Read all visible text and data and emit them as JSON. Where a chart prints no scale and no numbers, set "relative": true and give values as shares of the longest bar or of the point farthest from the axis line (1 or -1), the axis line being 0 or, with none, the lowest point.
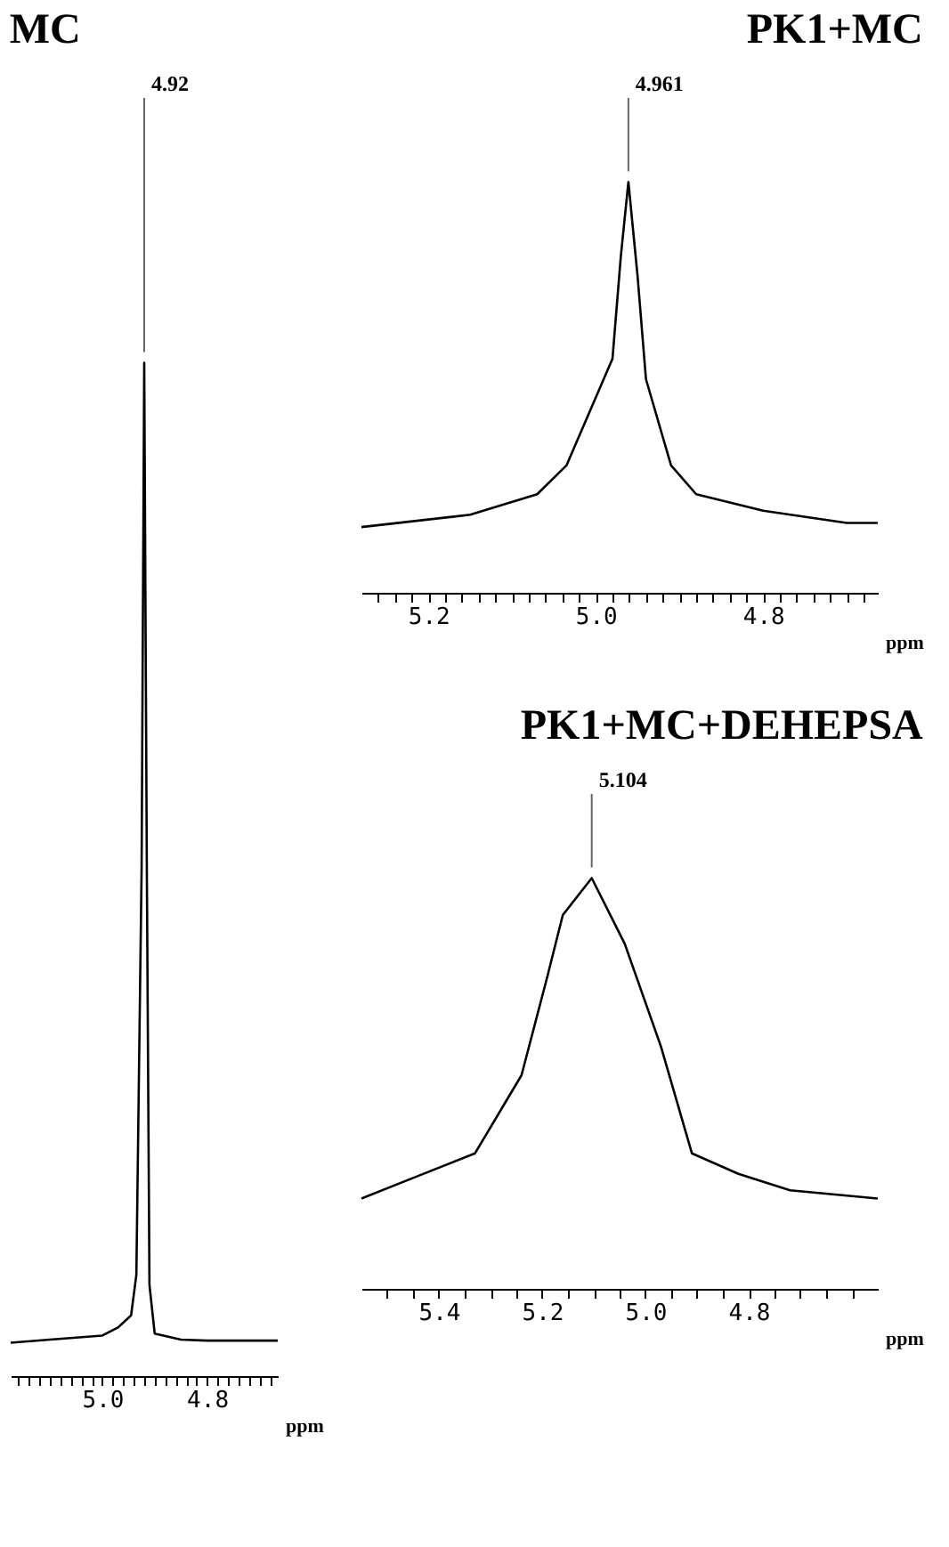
{
  "chart_data": [
    {
      "type": "line",
      "title": "MC",
      "xlabel": "ppm",
      "relative": true,
      "xlim": [
        5.175,
        4.665
      ],
      "xticks": [
        {
          "value": 5.16,
          "label": null
        },
        {
          "value": 5.14,
          "label": null
        },
        {
          "value": 5.12,
          "label": null
        },
        {
          "value": 5.1,
          "label": null
        },
        {
          "value": 5.08,
          "label": null
        },
        {
          "value": 5.06,
          "label": null
        },
        {
          "value": 5.04,
          "label": null
        },
        {
          "value": 5.02,
          "label": null
        },
        {
          "value": 5.0,
          "label": "5.0"
        },
        {
          "value": 4.98,
          "label": null
        },
        {
          "value": 4.96,
          "label": null
        },
        {
          "value": 4.94,
          "label": null
        },
        {
          "value": 4.92,
          "label": null
        },
        {
          "value": 4.9,
          "label": null
        },
        {
          "value": 4.88,
          "label": null
        },
        {
          "value": 4.86,
          "label": null
        },
        {
          "value": 4.84,
          "label": null
        },
        {
          "value": 4.82,
          "label": null
        },
        {
          "value": 4.8,
          "label": "4.8"
        },
        {
          "value": 4.78,
          "label": null
        },
        {
          "value": 4.76,
          "label": null
        },
        {
          "value": 4.74,
          "label": null
        },
        {
          "value": 4.72,
          "label": null
        },
        {
          "value": 4.7,
          "label": null
        },
        {
          "value": 4.68,
          "label": null
        }
      ],
      "x": [
        5.175,
        5.1,
        5.0,
        4.97,
        4.945,
        4.935,
        4.925,
        4.92,
        4.915,
        4.91,
        4.9,
        4.85,
        4.8,
        4.665
      ],
      "series": [
        {
          "color": "#000000",
          "values": [
            0.033,
            0.036,
            0.04,
            0.048,
            0.06,
            0.1,
            0.5,
            1.0,
            0.5,
            0.09,
            0.042,
            0.036,
            0.035,
            0.035
          ]
        }
      ],
      "annotations": [
        {
          "text": "4.92",
          "x": 4.92,
          "y": 1.0
        }
      ]
    },
    {
      "type": "line",
      "title": "PK1+MC",
      "xlabel": "ppm",
      "relative": true,
      "xlim": [
        5.28,
        4.663
      ],
      "xticks": [
        {
          "value": 5.26,
          "label": null
        },
        {
          "value": 5.24,
          "label": null
        },
        {
          "value": 5.22,
          "label": null
        },
        {
          "value": 5.2,
          "label": "5.2"
        },
        {
          "value": 5.18,
          "label": null
        },
        {
          "value": 5.16,
          "label": null
        },
        {
          "value": 5.14,
          "label": null
        },
        {
          "value": 5.12,
          "label": null
        },
        {
          "value": 5.1,
          "label": null
        },
        {
          "value": 5.08,
          "label": null
        },
        {
          "value": 5.06,
          "label": null
        },
        {
          "value": 5.04,
          "label": null
        },
        {
          "value": 5.02,
          "label": null
        },
        {
          "value": 5.0,
          "label": "5.0"
        },
        {
          "value": 4.98,
          "label": null
        },
        {
          "value": 4.96,
          "label": null
        },
        {
          "value": 4.94,
          "label": null
        },
        {
          "value": 4.92,
          "label": null
        },
        {
          "value": 4.9,
          "label": null
        },
        {
          "value": 4.88,
          "label": null
        },
        {
          "value": 4.86,
          "label": null
        },
        {
          "value": 4.84,
          "label": null
        },
        {
          "value": 4.82,
          "label": null
        },
        {
          "value": 4.8,
          "label": "4.8"
        },
        {
          "value": 4.78,
          "label": null
        },
        {
          "value": 4.76,
          "label": null
        },
        {
          "value": 4.74,
          "label": null
        },
        {
          "value": 4.72,
          "label": null
        },
        {
          "value": 4.7,
          "label": null
        },
        {
          "value": 4.68,
          "label": null
        }
      ],
      "x": [
        5.28,
        5.15,
        5.07,
        5.035,
        4.98,
        4.97,
        4.961,
        4.95,
        4.94,
        4.91,
        4.88,
        4.8,
        4.7,
        4.663
      ],
      "series": [
        {
          "color": "#000000",
          "values": [
            0.16,
            0.19,
            0.24,
            0.31,
            0.57,
            0.82,
            1.0,
            0.77,
            0.52,
            0.31,
            0.24,
            0.2,
            0.17,
            0.17
          ]
        }
      ],
      "annotations": [
        {
          "text": "4.961",
          "x": 4.961,
          "y": 1.0
        }
      ]
    },
    {
      "type": "line",
      "title": "PK1+MC+DEHEPSA",
      "xlabel": "ppm",
      "relative": true,
      "xlim": [
        5.55,
        4.55
      ],
      "xticks": [
        {
          "value": 5.5,
          "label": null
        },
        {
          "value": 5.45,
          "label": null
        },
        {
          "value": 5.4,
          "label": "5.4"
        },
        {
          "value": 5.35,
          "label": null
        },
        {
          "value": 5.3,
          "label": null
        },
        {
          "value": 5.25,
          "label": null
        },
        {
          "value": 5.2,
          "label": "5.2"
        },
        {
          "value": 5.15,
          "label": null
        },
        {
          "value": 5.1,
          "label": null
        },
        {
          "value": 5.05,
          "label": null
        },
        {
          "value": 5.0,
          "label": "5.0"
        },
        {
          "value": 4.95,
          "label": null
        },
        {
          "value": 4.9,
          "label": null
        },
        {
          "value": 4.85,
          "label": null
        },
        {
          "value": 4.8,
          "label": "4.8"
        },
        {
          "value": 4.75,
          "label": null
        },
        {
          "value": 4.7,
          "label": null
        },
        {
          "value": 4.65,
          "label": null
        },
        {
          "value": 4.6,
          "label": null
        }
      ],
      "x": [
        5.55,
        5.45,
        5.33,
        5.24,
        5.19,
        5.16,
        5.104,
        5.04,
        4.97,
        4.91,
        4.82,
        4.72,
        4.55
      ],
      "series": [
        {
          "color": "#000000",
          "values": [
            0.22,
            0.27,
            0.33,
            0.52,
            0.76,
            0.91,
            1.0,
            0.84,
            0.59,
            0.33,
            0.28,
            0.24,
            0.22
          ]
        }
      ],
      "annotations": [
        {
          "text": "5.104",
          "x": 5.104,
          "y": 1.0
        }
      ]
    }
  ]
}
